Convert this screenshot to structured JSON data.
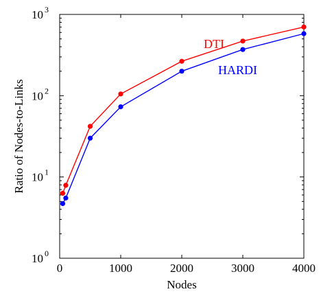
{
  "chart_data": {
    "type": "line",
    "title": "",
    "xlabel": "Nodes",
    "ylabel": "Ratio of Nodes-to-Links",
    "x_scale": "linear",
    "y_scale": "log",
    "xlim": [
      0,
      4000
    ],
    "ylim": [
      1,
      1000
    ],
    "x_ticks": [
      "0",
      "1000",
      "2000",
      "3000",
      "4000"
    ],
    "y_ticks": [
      {
        "base": "10",
        "exp": "0"
      },
      {
        "base": "10",
        "exp": "1"
      },
      {
        "base": "10",
        "exp": "2"
      },
      {
        "base": "10",
        "exp": "3"
      }
    ],
    "grid": false,
    "series": [
      {
        "name": "DTI",
        "color": "#ff0000",
        "x": [
          50,
          100,
          500,
          1000,
          2000,
          3000,
          4000
        ],
        "y": [
          6.3,
          7.9,
          42,
          105,
          265,
          470,
          700
        ]
      },
      {
        "name": "HARDI",
        "color": "#0000ff",
        "x": [
          50,
          100,
          500,
          1000,
          2000,
          3000,
          4000
        ],
        "y": [
          4.7,
          5.5,
          30,
          73,
          200,
          370,
          580
        ]
      }
    ]
  }
}
